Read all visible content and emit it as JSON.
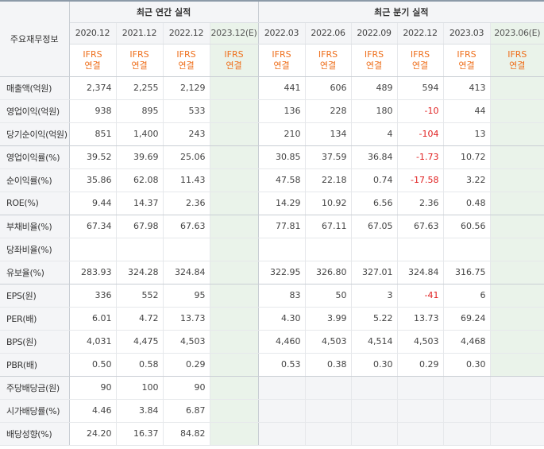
{
  "header": {
    "item_label": "주요재무정보",
    "annual_title": "최근 연간 실적",
    "quarter_title": "최근 분기 실적",
    "annual_periods": [
      "2020.12",
      "2021.12",
      "2022.12",
      "2023.12(E)"
    ],
    "quarter_periods": [
      "2022.03",
      "2022.06",
      "2022.09",
      "2022.12",
      "2023.03",
      "2023.06(E)"
    ],
    "ifrs_top": "IFRS",
    "ifrs_bottom": "연결"
  },
  "rows": [
    {
      "label": "매출액(억원)",
      "annual": [
        "2,374",
        "2,255",
        "2,129",
        ""
      ],
      "quarter": [
        "441",
        "606",
        "489",
        "594",
        "413",
        ""
      ]
    },
    {
      "label": "영업이익(억원)",
      "annual": [
        "938",
        "895",
        "533",
        ""
      ],
      "quarter": [
        "136",
        "228",
        "180",
        "-10",
        "44",
        ""
      ]
    },
    {
      "label": "당기순이익(억원)",
      "annual": [
        "851",
        "1,400",
        "243",
        ""
      ],
      "quarter": [
        "210",
        "134",
        "4",
        "-104",
        "13",
        ""
      ]
    },
    {
      "label": "영업이익률(%)",
      "annual": [
        "39.52",
        "39.69",
        "25.06",
        ""
      ],
      "quarter": [
        "30.85",
        "37.59",
        "36.84",
        "-1.73",
        "10.72",
        ""
      ]
    },
    {
      "label": "순이익률(%)",
      "annual": [
        "35.86",
        "62.08",
        "11.43",
        ""
      ],
      "quarter": [
        "47.58",
        "22.18",
        "0.74",
        "-17.58",
        "3.22",
        ""
      ]
    },
    {
      "label": "ROE(%)",
      "annual": [
        "9.44",
        "14.37",
        "2.36",
        ""
      ],
      "quarter": [
        "14.29",
        "10.92",
        "6.56",
        "2.36",
        "0.48",
        ""
      ]
    },
    {
      "label": "부채비율(%)",
      "annual": [
        "67.34",
        "67.98",
        "67.63",
        ""
      ],
      "quarter": [
        "77.81",
        "67.11",
        "67.05",
        "67.63",
        "60.56",
        ""
      ]
    },
    {
      "label": "당좌비율(%)",
      "annual": [
        "",
        "",
        "",
        ""
      ],
      "quarter": [
        "",
        "",
        "",
        "",
        "",
        ""
      ]
    },
    {
      "label": "유보율(%)",
      "annual": [
        "283.93",
        "324.28",
        "324.84",
        ""
      ],
      "quarter": [
        "322.95",
        "326.80",
        "327.01",
        "324.84",
        "316.75",
        ""
      ]
    },
    {
      "label": "EPS(원)",
      "annual": [
        "336",
        "552",
        "95",
        ""
      ],
      "quarter": [
        "83",
        "50",
        "3",
        "-41",
        "6",
        ""
      ]
    },
    {
      "label": "PER(배)",
      "annual": [
        "6.01",
        "4.72",
        "13.73",
        ""
      ],
      "quarter": [
        "4.30",
        "3.99",
        "5.22",
        "13.73",
        "69.24",
        ""
      ]
    },
    {
      "label": "BPS(원)",
      "annual": [
        "4,031",
        "4,475",
        "4,503",
        ""
      ],
      "quarter": [
        "4,460",
        "4,503",
        "4,514",
        "4,503",
        "4,468",
        ""
      ]
    },
    {
      "label": "PBR(배)",
      "annual": [
        "0.50",
        "0.58",
        "0.29",
        ""
      ],
      "quarter": [
        "0.53",
        "0.38",
        "0.30",
        "0.29",
        "0.30",
        ""
      ]
    },
    {
      "label": "주당배당금(원)",
      "annual": [
        "90",
        "100",
        "90",
        ""
      ],
      "quarter": [],
      "quarter_empty": true
    },
    {
      "label": "시가배당률(%)",
      "annual": [
        "4.46",
        "3.84",
        "6.87",
        ""
      ],
      "quarter": [],
      "quarter_empty": true
    },
    {
      "label": "배당성향(%)",
      "annual": [
        "24.20",
        "16.37",
        "84.82",
        ""
      ],
      "quarter": [],
      "quarter_empty": true
    }
  ],
  "colors": {
    "negative": "#e02020",
    "ifrs": "#ee6f1c",
    "estimate_bg": "#eaf3ea",
    "header_bg": "#f4f5f7"
  }
}
